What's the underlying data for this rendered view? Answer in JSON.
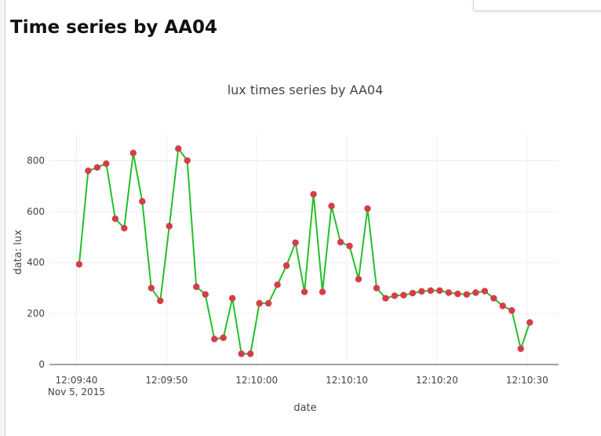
{
  "page": {
    "title": "Time series by AA04"
  },
  "chart_data": {
    "type": "line",
    "title": "lux times series by AA04",
    "xlabel": "date",
    "ylabel": "data: lux",
    "x_ticks": [
      {
        "t": 0,
        "label": "12:09:40",
        "sublabel": "Nov 5, 2015"
      },
      {
        "t": 10,
        "label": "12:09:50"
      },
      {
        "t": 20,
        "label": "12:10:00"
      },
      {
        "t": 30,
        "label": "12:10:10"
      },
      {
        "t": 40,
        "label": "12:10:20"
      },
      {
        "t": 50,
        "label": "12:10:30"
      }
    ],
    "y_ticks": [
      0,
      200,
      400,
      600,
      800
    ],
    "xlim": [
      -3.0,
      53.5
    ],
    "ylim": [
      0,
      900
    ],
    "grid": true,
    "colors": {
      "line": "#22c02a",
      "marker": "#d63c4a"
    },
    "series": [
      {
        "t": [
          0.3,
          1.3,
          2.3,
          3.3,
          4.3,
          5.3,
          6.3,
          7.3,
          8.3,
          9.3,
          10.3,
          11.3,
          12.3,
          13.3,
          14.3,
          15.3,
          16.3,
          17.3,
          18.3,
          19.3,
          20.3,
          21.3,
          22.3,
          23.3,
          24.3,
          25.3,
          26.3,
          27.3,
          28.3,
          29.3,
          30.3,
          31.3,
          32.3,
          33.3,
          34.3,
          35.3,
          36.3,
          37.3,
          38.3,
          39.3,
          40.3,
          41.3,
          42.3,
          43.3,
          44.3,
          45.3,
          46.3,
          47.3,
          48.3,
          49.3,
          50.3
        ],
        "values": [
          393,
          760,
          773,
          788,
          572,
          535,
          830,
          640,
          300,
          250,
          543,
          847,
          800,
          305,
          275,
          100,
          105,
          260,
          42,
          42,
          240,
          240,
          313,
          388,
          478,
          285,
          668,
          285,
          622,
          480,
          465,
          335,
          612,
          300,
          260,
          270,
          272,
          280,
          287,
          290,
          290,
          282,
          277,
          275,
          282,
          288,
          260,
          230,
          212,
          62,
          165
        ]
      }
    ]
  }
}
